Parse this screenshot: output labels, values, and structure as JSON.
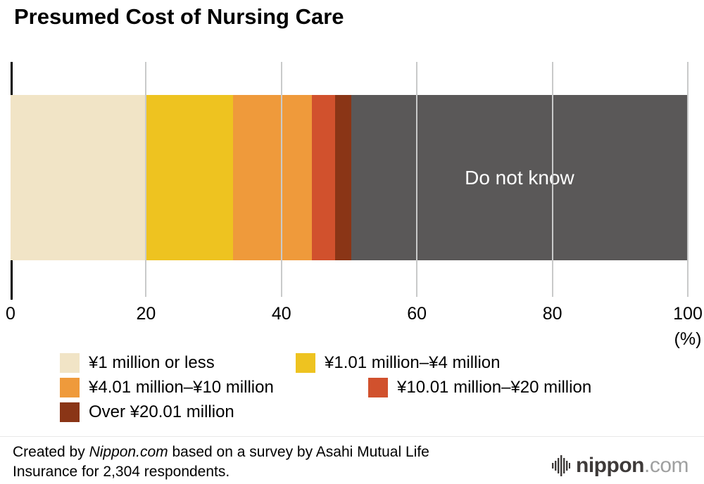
{
  "title": "Presumed Cost of Nursing Care",
  "chart_data": {
    "type": "bar",
    "orientation": "horizontal-stacked",
    "title": "Presumed Cost of Nursing Care",
    "xlim": [
      0,
      100
    ],
    "x_ticks": [
      0,
      20,
      40,
      60,
      80,
      100
    ],
    "x_unit": "(%)",
    "grid": true,
    "legend_position": "bottom",
    "legend_rows": [
      [
        0,
        1
      ],
      [
        2,
        3
      ],
      [
        4
      ]
    ],
    "segments": [
      {
        "label": "¥1 million or less",
        "value": 20.1,
        "color": "#f1e4c6"
      },
      {
        "label": "¥1.01 million–¥4 million",
        "value": 12.7,
        "color": "#eec320"
      },
      {
        "label": "¥4.01 million–¥10 million",
        "value": 11.7,
        "color": "#ef9a3b"
      },
      {
        "label": "¥10.01 million–¥20 million",
        "value": 3.4,
        "color": "#d1512d"
      },
      {
        "label": "Over ¥20.01 million",
        "value": 2.4,
        "color": "#8a3516"
      },
      {
        "label": "Do not know",
        "value": 49.7,
        "color": "#5a5858",
        "in_bar_label": "Do not know",
        "in_bar_label_color": "#ffffff"
      }
    ]
  },
  "footer": {
    "credit_prefix": "Created by ",
    "credit_source": "Nippon.com",
    "credit_line1_rest": " based on a survey by Asahi Mutual Life",
    "credit_line2": "Insurance for 2,304 respondents.",
    "logo": {
      "name": "nippon",
      "tld": ".com"
    }
  }
}
